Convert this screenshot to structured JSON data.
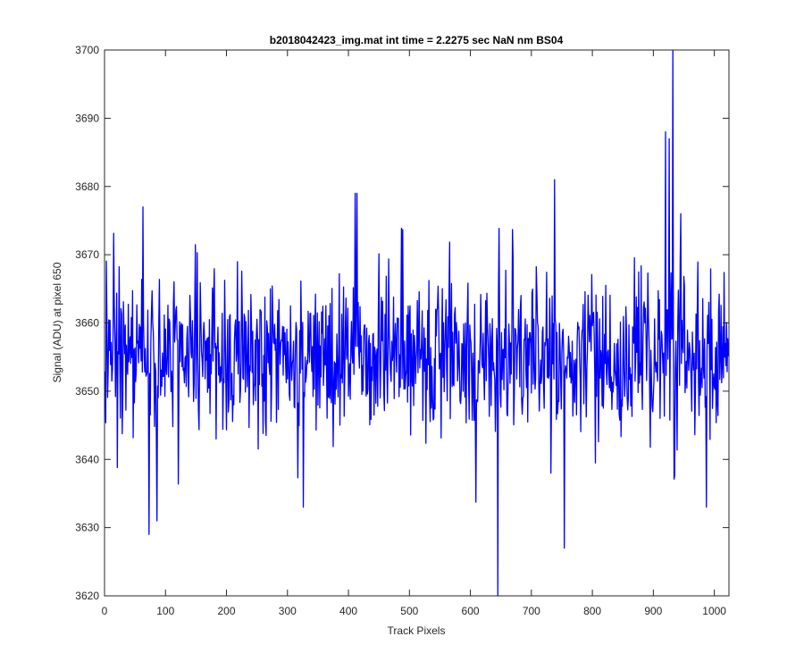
{
  "chart_data": {
    "type": "line",
    "title": "b2018042423_img.mat int time = 2.2275 sec  NaN nm BS04",
    "xlabel": "Track Pixels",
    "ylabel": "Signal (ADU) at pixel 650",
    "xlim": [
      0,
      1024
    ],
    "ylim": [
      3620,
      3700
    ],
    "x_ticks": [
      0,
      100,
      200,
      300,
      400,
      500,
      600,
      700,
      800,
      900,
      1000
    ],
    "y_ticks": [
      3620,
      3630,
      3640,
      3650,
      3660,
      3670,
      3680,
      3690,
      3700
    ],
    "grid": false,
    "box": true,
    "series_color": "#0000ff",
    "series": [
      {
        "x_start": 1,
        "x_step": 1,
        "baseline": 3655,
        "noise_std": 6,
        "n_points": 1024,
        "notable_points": [
          {
            "x": 73,
            "y": 3629
          },
          {
            "x": 86,
            "y": 3631
          },
          {
            "x": 63,
            "y": 3677
          },
          {
            "x": 411,
            "y": 3679
          },
          {
            "x": 414,
            "y": 3679
          },
          {
            "x": 645,
            "y": 3620
          },
          {
            "x": 738,
            "y": 3681
          },
          {
            "x": 754,
            "y": 3627
          },
          {
            "x": 920,
            "y": 3688
          },
          {
            "x": 926,
            "y": 3687
          },
          {
            "x": 932,
            "y": 3700
          },
          {
            "x": 945,
            "y": 3676
          }
        ]
      }
    ]
  }
}
